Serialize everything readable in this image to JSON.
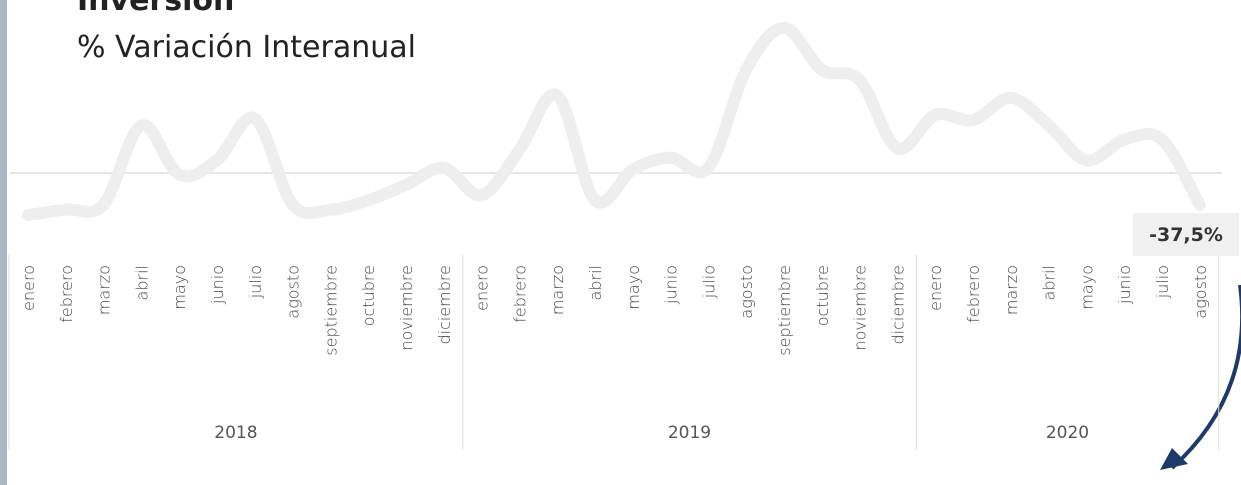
{
  "chart_data": {
    "type": "line",
    "title": "Inversión",
    "subtitle": "% Variación Interanual",
    "categories": [
      "enero",
      "febrero",
      "marzo",
      "abril",
      "mayo",
      "junio",
      "julio",
      "agosto",
      "septiembre",
      "octubre",
      "noviembre",
      "diciembre",
      "enero",
      "febrero",
      "marzo",
      "abril",
      "mayo",
      "junio",
      "julio",
      "agosto",
      "septiembre",
      "octubre",
      "noviembre",
      "diciembre",
      "enero",
      "febrero",
      "marzo",
      "abril",
      "mayo",
      "junio",
      "julio",
      "agosto"
    ],
    "category_groups": [
      {
        "label": "2018",
        "size": 12
      },
      {
        "label": "2019",
        "size": 12
      },
      {
        "label": "2020",
        "size": 8
      }
    ],
    "series": [
      {
        "name": "Inversión",
        "color": "#eeeeee",
        "values": [
          -49,
          -43,
          -37,
          56,
          -2,
          15,
          64,
          -37,
          -43,
          -32,
          -14,
          6,
          -26,
          27,
          91,
          -32,
          4,
          18,
          6,
          121,
          170,
          121,
          109,
          29,
          68,
          62,
          88,
          56,
          15,
          39,
          39,
          -37.5
        ],
        "value_labels": [
          null,
          null,
          null,
          null,
          null,
          null,
          null,
          null,
          null,
          null,
          null,
          null,
          null,
          null,
          null,
          null,
          null,
          null,
          null,
          null,
          null,
          null,
          null,
          null,
          null,
          null,
          null,
          null,
          null,
          null,
          null,
          "-37,5%"
        ]
      }
    ],
    "ylim": [
      -60,
      180
    ]
  }
}
